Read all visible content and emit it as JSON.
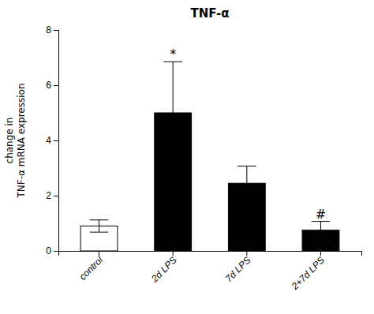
{
  "chart_data": {
    "type": "bar",
    "title": "TNF-α",
    "categories": [
      "control",
      "2d LPS",
      "7d LPS",
      "2+7d LPS"
    ],
    "values": [
      0.9,
      5.0,
      2.45,
      0.75
    ],
    "errors": [
      0.22,
      1.85,
      0.62,
      0.32
    ],
    "colors": [
      "white",
      "black",
      "black",
      "black"
    ],
    "ylabel": [
      "change in",
      "TNF-α mRNA expression"
    ],
    "ylim": [
      0,
      8
    ],
    "yticks": [
      0,
      2,
      4,
      6,
      8
    ],
    "annotations": [
      {
        "text": "*",
        "index": 1
      },
      {
        "text": "#",
        "index": 3
      }
    ],
    "grid": false
  }
}
